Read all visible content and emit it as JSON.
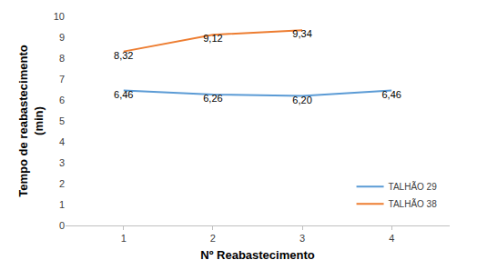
{
  "chart_data": {
    "type": "line",
    "x_label": "Nº Reabastecimento",
    "y_label": "Tempo de reabastecimento\n(min)",
    "categories": [
      "1",
      "2",
      "3",
      "4"
    ],
    "series": [
      {
        "name": "TALHÃO 29",
        "color": "#5b9bd5",
        "values": [
          6.46,
          6.26,
          6.2,
          6.46
        ],
        "value_labels": [
          "6,46",
          "6,26",
          "6,20",
          "6,46"
        ]
      },
      {
        "name": "TALHÃO 38",
        "color": "#ed7d31",
        "values": [
          8.32,
          9.12,
          9.34,
          null
        ],
        "value_labels": [
          "8,32",
          "9,12",
          "9,34",
          null
        ]
      }
    ],
    "ylim": [
      0,
      10
    ],
    "yticks": [
      0,
      1,
      2,
      3,
      4,
      5,
      6,
      7,
      8,
      9,
      10
    ],
    "grid": false,
    "data_labels": true,
    "legend": "lower right"
  }
}
